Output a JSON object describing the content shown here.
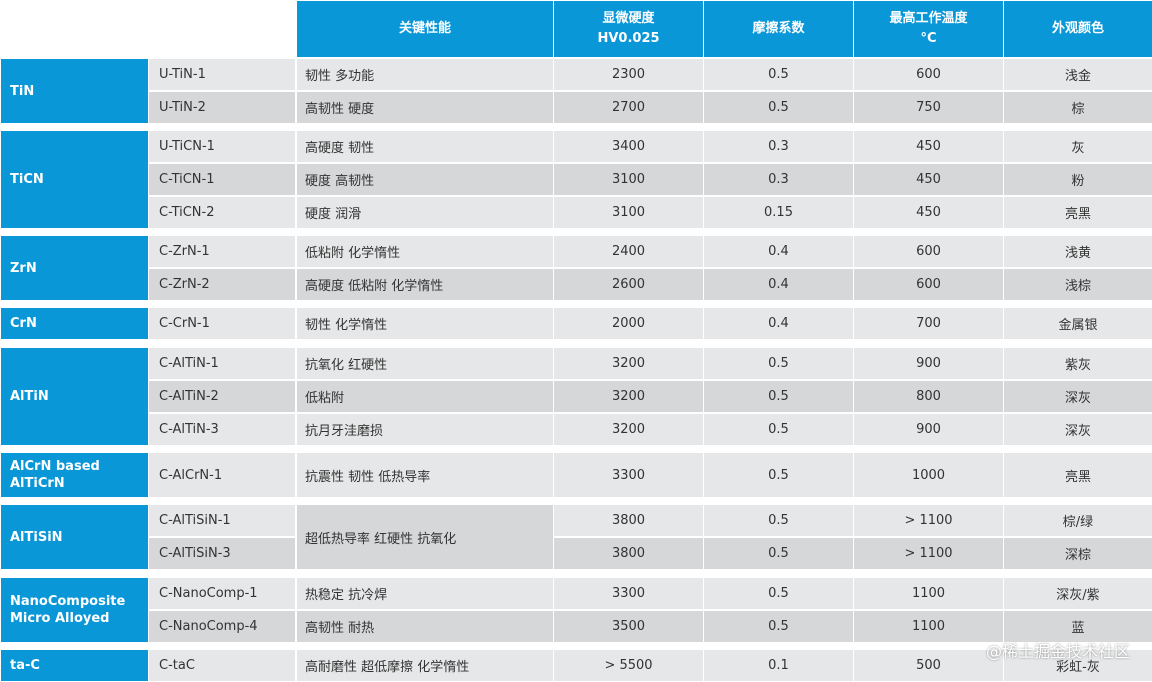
{
  "header": [
    "",
    "",
    "关键性能",
    "显微硬度\nHV0.025",
    "摩擦系数",
    "最高工作温度\n°C",
    "外观颜色"
  ],
  "groups": [
    {
      "name": "TiN",
      "rows": [
        {
          "code": "U-TiN-1",
          "props": "韧性 多功能",
          "hardness": "2300",
          "friction": "0.5",
          "temp": "600",
          "color": "浅金"
        },
        {
          "code": "U-TiN-2",
          "props": "高韧性 硬度",
          "hardness": "2700",
          "friction": "0.5",
          "temp": "750",
          "color": "棕"
        }
      ]
    },
    {
      "name": "TiCN",
      "rows": [
        {
          "code": "U-TiCN-1",
          "props": "高硬度 韧性",
          "hardness": "3400",
          "friction": "0.3",
          "temp": "450",
          "color": "灰"
        },
        {
          "code": "C-TiCN-1",
          "props": "硬度 高韧性",
          "hardness": "3100",
          "friction": "0.3",
          "temp": "450",
          "color": "粉"
        },
        {
          "code": "C-TiCN-2",
          "props": "硬度 润滑",
          "hardness": "3100",
          "friction": "0.15",
          "temp": "450",
          "color": "亮黑"
        }
      ]
    },
    {
      "name": "ZrN",
      "rows": [
        {
          "code": "C-ZrN-1",
          "props": "低粘附 化学惰性",
          "hardness": "2400",
          "friction": "0.4",
          "temp": "600",
          "color": "浅黄"
        },
        {
          "code": "C-ZrN-2",
          "props": "高硬度 低粘附 化学惰性",
          "hardness": "2600",
          "friction": "0.4",
          "temp": "600",
          "color": "浅棕"
        }
      ]
    },
    {
      "name": "CrN",
      "rows": [
        {
          "code": "C-CrN-1",
          "props": "韧性 化学惰性",
          "hardness": "2000",
          "friction": "0.4",
          "temp": "700",
          "color": "金属银"
        }
      ]
    },
    {
      "name": "AlTiN",
      "rows": [
        {
          "code": "C-AlTiN-1",
          "props": "抗氧化 红硬性",
          "hardness": "3200",
          "friction": "0.5",
          "temp": "900",
          "color": "紫灰"
        },
        {
          "code": "C-AlTiN-2",
          "props": "低粘附",
          "hardness": "3200",
          "friction": "0.5",
          "temp": "800",
          "color": "深灰"
        },
        {
          "code": "C-AlTiN-3",
          "props": "抗月牙洼磨损",
          "hardness": "3200",
          "friction": "0.5",
          "temp": "900",
          "color": "深灰"
        }
      ]
    },
    {
      "name": "AlCrN based\nAlTiCrN",
      "rows": [
        {
          "code": "C-AlCrN-1",
          "props": "抗震性 韧性 低热导率",
          "hardness": "3300",
          "friction": "0.5",
          "temp": "1000",
          "color": "亮黑"
        }
      ]
    },
    {
      "name": "AlTiSiN",
      "merged_props": "超低热导率 红硬性 抗氧化",
      "rows": [
        {
          "code": "C-AlTiSiN-1",
          "hardness": "3800",
          "friction": "0.5",
          "temp": "> 1100",
          "color": "棕/绿"
        },
        {
          "code": "C-AlTiSiN-3",
          "hardness": "3800",
          "friction": "0.5",
          "temp": "> 1100",
          "color": "深棕"
        }
      ]
    },
    {
      "name": "NanoComposite\nMicro Alloyed",
      "rows": [
        {
          "code": "C-NanoComp-1",
          "props": "热稳定 抗冷焊",
          "hardness": "3300",
          "friction": "0.5",
          "temp": "1100",
          "color": "深灰/紫"
        },
        {
          "code": "C-NanoComp-4",
          "props": "高韧性 耐热",
          "hardness": "3500",
          "friction": "0.5",
          "temp": "1100",
          "color": "蓝"
        }
      ]
    },
    {
      "name": "ta-C",
      "rows": [
        {
          "code": "C-taC",
          "props": "高耐磨性 超低摩擦 化学惰性",
          "hardness": "> 5500",
          "friction": "0.1",
          "temp": "500",
          "color": "彩虹-灰"
        }
      ]
    }
  ],
  "watermark": "@稀土掘金技术社区",
  "colors": {
    "header_blue": "#0a97d8",
    "row_light": "#e6e7e8",
    "row_dark": "#d6d7d9"
  }
}
